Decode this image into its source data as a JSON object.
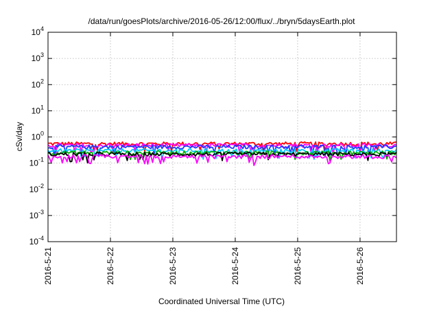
{
  "chart_data": {
    "type": "line",
    "title": "/data/run/goesPlots/archive/2016-05-26/12:00/flux/../bryn/5daysEarth.plot",
    "xlabel": "Coordinated Universal Time (UTC)",
    "ylabel": "cSv/day",
    "yscale": "log",
    "ylim": [
      0.0001,
      10000
    ],
    "xlim": [
      "2016-05-21",
      "2016-05-26 14:00"
    ],
    "x_ticks": [
      "2016-5-21",
      "2016-5-22",
      "2016-5-23",
      "2016-5-24",
      "2016-5-25",
      "2016-5-26"
    ],
    "y_ticks": [
      {
        "value": 0.0001,
        "base": "10",
        "exp": "-4"
      },
      {
        "value": 0.001,
        "base": "10",
        "exp": "-3"
      },
      {
        "value": 0.01,
        "base": "10",
        "exp": "-2"
      },
      {
        "value": 0.1,
        "base": "10",
        "exp": "-1"
      },
      {
        "value": 1,
        "base": "10",
        "exp": "0"
      },
      {
        "value": 10,
        "base": "10",
        "exp": "1"
      },
      {
        "value": 100,
        "base": "10",
        "exp": "2"
      },
      {
        "value": 1000,
        "base": "10",
        "exp": "3"
      },
      {
        "value": 10000,
        "base": "10",
        "exp": "4"
      }
    ],
    "grid": true,
    "legend": "none",
    "series": [
      {
        "color": "#ff0000",
        "level": 0.55
      },
      {
        "color": "#ff00ff",
        "level": 0.48
      },
      {
        "color": "#1a3cff",
        "level": 0.42
      },
      {
        "color": "#00c8ff",
        "level": 0.3
      },
      {
        "color": "#00b000",
        "level": 0.25
      },
      {
        "color": "#000000",
        "level": 0.22
      },
      {
        "color": "#ff00ff",
        "level": 0.18
      }
    ]
  }
}
